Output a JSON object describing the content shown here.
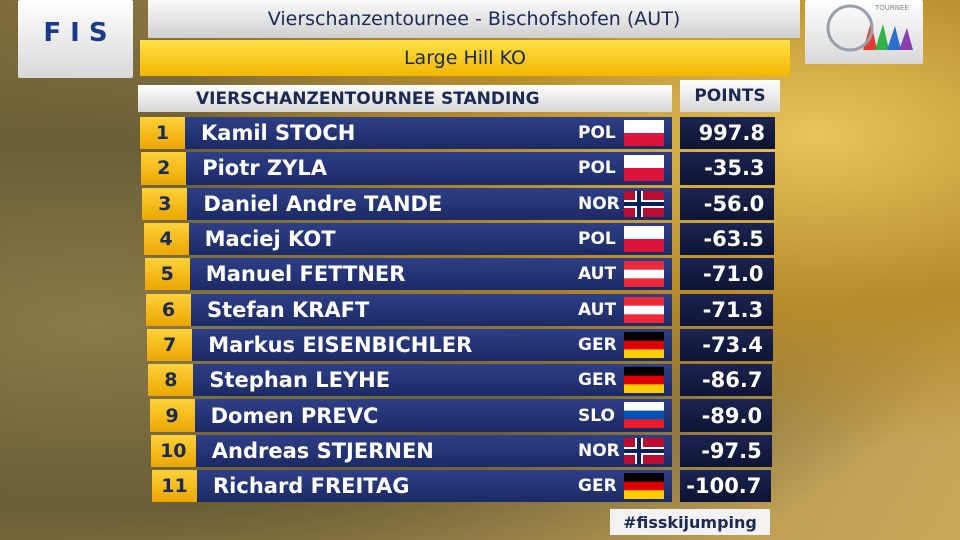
{
  "logos": {
    "fis": "F I S",
    "tournee": "TOURNEE"
  },
  "header": {
    "title": "Vierschanzentournee - Bischofshofen (AUT)",
    "subtitle": "Large Hill KO"
  },
  "table": {
    "title": "VIERSCHANZENTOURNEE STANDING",
    "points_header": "POINTS",
    "rows": [
      {
        "rank": "1",
        "name": "Kamil STOCH",
        "nation": "POL",
        "points": "997.8",
        "flag": {
          "stripes": [
            "#ffffff",
            "#dc143c"
          ]
        }
      },
      {
        "rank": "2",
        "name": "Piotr ZYLA",
        "nation": "POL",
        "points": "-35.3",
        "flag": {
          "stripes": [
            "#ffffff",
            "#dc143c"
          ]
        }
      },
      {
        "rank": "3",
        "name": "Daniel Andre TANDE",
        "nation": "NOR",
        "points": "-56.0",
        "flag": {
          "stripes": [
            "#ba0c2f"
          ],
          "cross": [
            "#ffffff",
            "#00205b"
          ]
        }
      },
      {
        "rank": "4",
        "name": "Maciej KOT",
        "nation": "POL",
        "points": "-63.5",
        "flag": {
          "stripes": [
            "#ffffff",
            "#dc143c"
          ]
        }
      },
      {
        "rank": "5",
        "name": "Manuel FETTNER",
        "nation": "AUT",
        "points": "-71.0",
        "flag": {
          "stripes": [
            "#ed2939",
            "#ffffff",
            "#ed2939"
          ]
        }
      },
      {
        "rank": "6",
        "name": "Stefan KRAFT",
        "nation": "AUT",
        "points": "-71.3",
        "flag": {
          "stripes": [
            "#ed2939",
            "#ffffff",
            "#ed2939"
          ]
        }
      },
      {
        "rank": "7",
        "name": "Markus EISENBICHLER",
        "nation": "GER",
        "points": "-73.4",
        "flag": {
          "stripes": [
            "#000000",
            "#dd0000",
            "#ffce00"
          ]
        }
      },
      {
        "rank": "8",
        "name": "Stephan LEYHE",
        "nation": "GER",
        "points": "-86.7",
        "flag": {
          "stripes": [
            "#000000",
            "#dd0000",
            "#ffce00"
          ]
        }
      },
      {
        "rank": "9",
        "name": "Domen PREVC",
        "nation": "SLO",
        "points": "-89.0",
        "flag": {
          "stripes": [
            "#ffffff",
            "#0052b4",
            "#ed1c24"
          ]
        }
      },
      {
        "rank": "10",
        "name": "Andreas STJERNEN",
        "nation": "NOR",
        "points": "-97.5",
        "flag": {
          "stripes": [
            "#ba0c2f"
          ],
          "cross": [
            "#ffffff",
            "#00205b"
          ]
        }
      },
      {
        "rank": "11",
        "name": "Richard FREITAG",
        "nation": "GER",
        "points": "-100.7",
        "flag": {
          "stripes": [
            "#000000",
            "#dd0000",
            "#ffce00"
          ]
        }
      }
    ]
  },
  "hashtag": "#fisskijumping"
}
